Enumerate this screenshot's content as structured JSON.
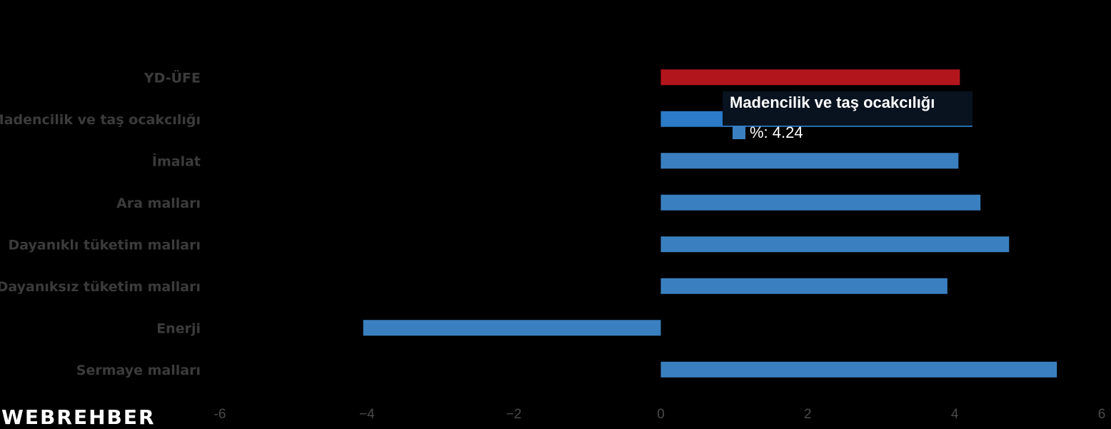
{
  "chart_data": {
    "type": "bar",
    "orientation": "horizontal",
    "categories": [
      "YD-ÜFE",
      "Madencilik ve taş ocakcılığı",
      "İmalat",
      "Ara malları",
      "Dayanıklı tüketim malları",
      "Dayanıksız tüketim malları",
      "Enerji",
      "Sermaye malları"
    ],
    "values": [
      4.07,
      4.24,
      4.05,
      4.35,
      4.74,
      3.9,
      -4.05,
      5.39
    ],
    "bar_colors": [
      "#b3151c",
      "#2b7bc8",
      "#3a80c1",
      "#3a80c1",
      "#3a80c1",
      "#3a80c1",
      "#3a80c1",
      "#3a80c1"
    ],
    "highlight_color": "#1e74c6",
    "xlim": [
      -6,
      6
    ],
    "xticks": [
      "-6",
      "−4",
      "−2",
      "0",
      "2",
      "4",
      "6"
    ],
    "xtick_values": [
      -6,
      -4,
      -2,
      0,
      2,
      4,
      6
    ],
    "grid": false
  },
  "tooltip": {
    "title": "Madencilik ve taş ocakcılığı",
    "series_label": "%: 4.24",
    "swatch_color": "#3a80c1"
  },
  "logo": {
    "text": "WEBREHBER"
  }
}
